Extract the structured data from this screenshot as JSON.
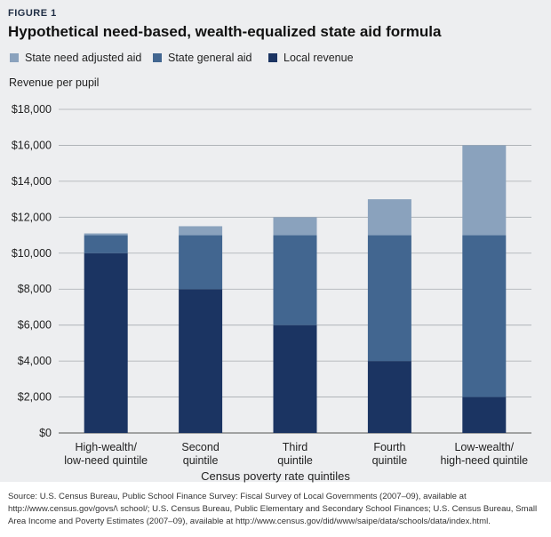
{
  "figure_label": "FIGURE 1",
  "chart_data": {
    "type": "bar",
    "stacked": true,
    "title": "Hypothetical need-based, wealth-equalized state aid formula",
    "ylabel": "Revenue per pupil",
    "xlabel": "Census poverty rate quintiles",
    "ylim": [
      0,
      18000
    ],
    "yticks": [
      0,
      2000,
      4000,
      6000,
      8000,
      10000,
      12000,
      14000,
      16000,
      18000
    ],
    "ytick_labels": [
      "$0",
      "$2,000",
      "$4,000",
      "$6,000",
      "$8,000",
      "$10,000",
      "$12,000",
      "$14,000",
      "$16,000",
      "$18,000"
    ],
    "categories": [
      [
        "High-wealth/",
        "low-need quintile"
      ],
      [
        "Second",
        "quintile"
      ],
      [
        "Third",
        "quintile"
      ],
      [
        "Fourth",
        "quintile"
      ],
      [
        "Low-wealth/",
        "high-need quintile"
      ]
    ],
    "series": [
      {
        "name": "Local revenue",
        "color": "#1b3462",
        "values": [
          10000,
          8000,
          6000,
          4000,
          2000
        ]
      },
      {
        "name": "State general aid",
        "color": "#426690",
        "values": [
          1000,
          3000,
          5000,
          7000,
          9000
        ]
      },
      {
        "name": "State need adjusted aid",
        "color": "#8aa2bd",
        "values": [
          100,
          500,
          1000,
          2000,
          5000
        ]
      }
    ],
    "legend_order": [
      "State need adjusted aid",
      "State general aid",
      "Local revenue"
    ],
    "grid": true
  },
  "source": "Source: U.S. Census Bureau, Public School Finance Survey: Fiscal Survey of Local Governments (2007–09), available at http://www.census.gov/govs/\\ school/; U.S. Census Bureau, Public Elementary and Secondary School Finances; U.S. Census Bureau, Small Area Income and Poverty Estimates (2007–09), available at http://www.census.gov/did/www/saipe/data/schools/data/index.html."
}
